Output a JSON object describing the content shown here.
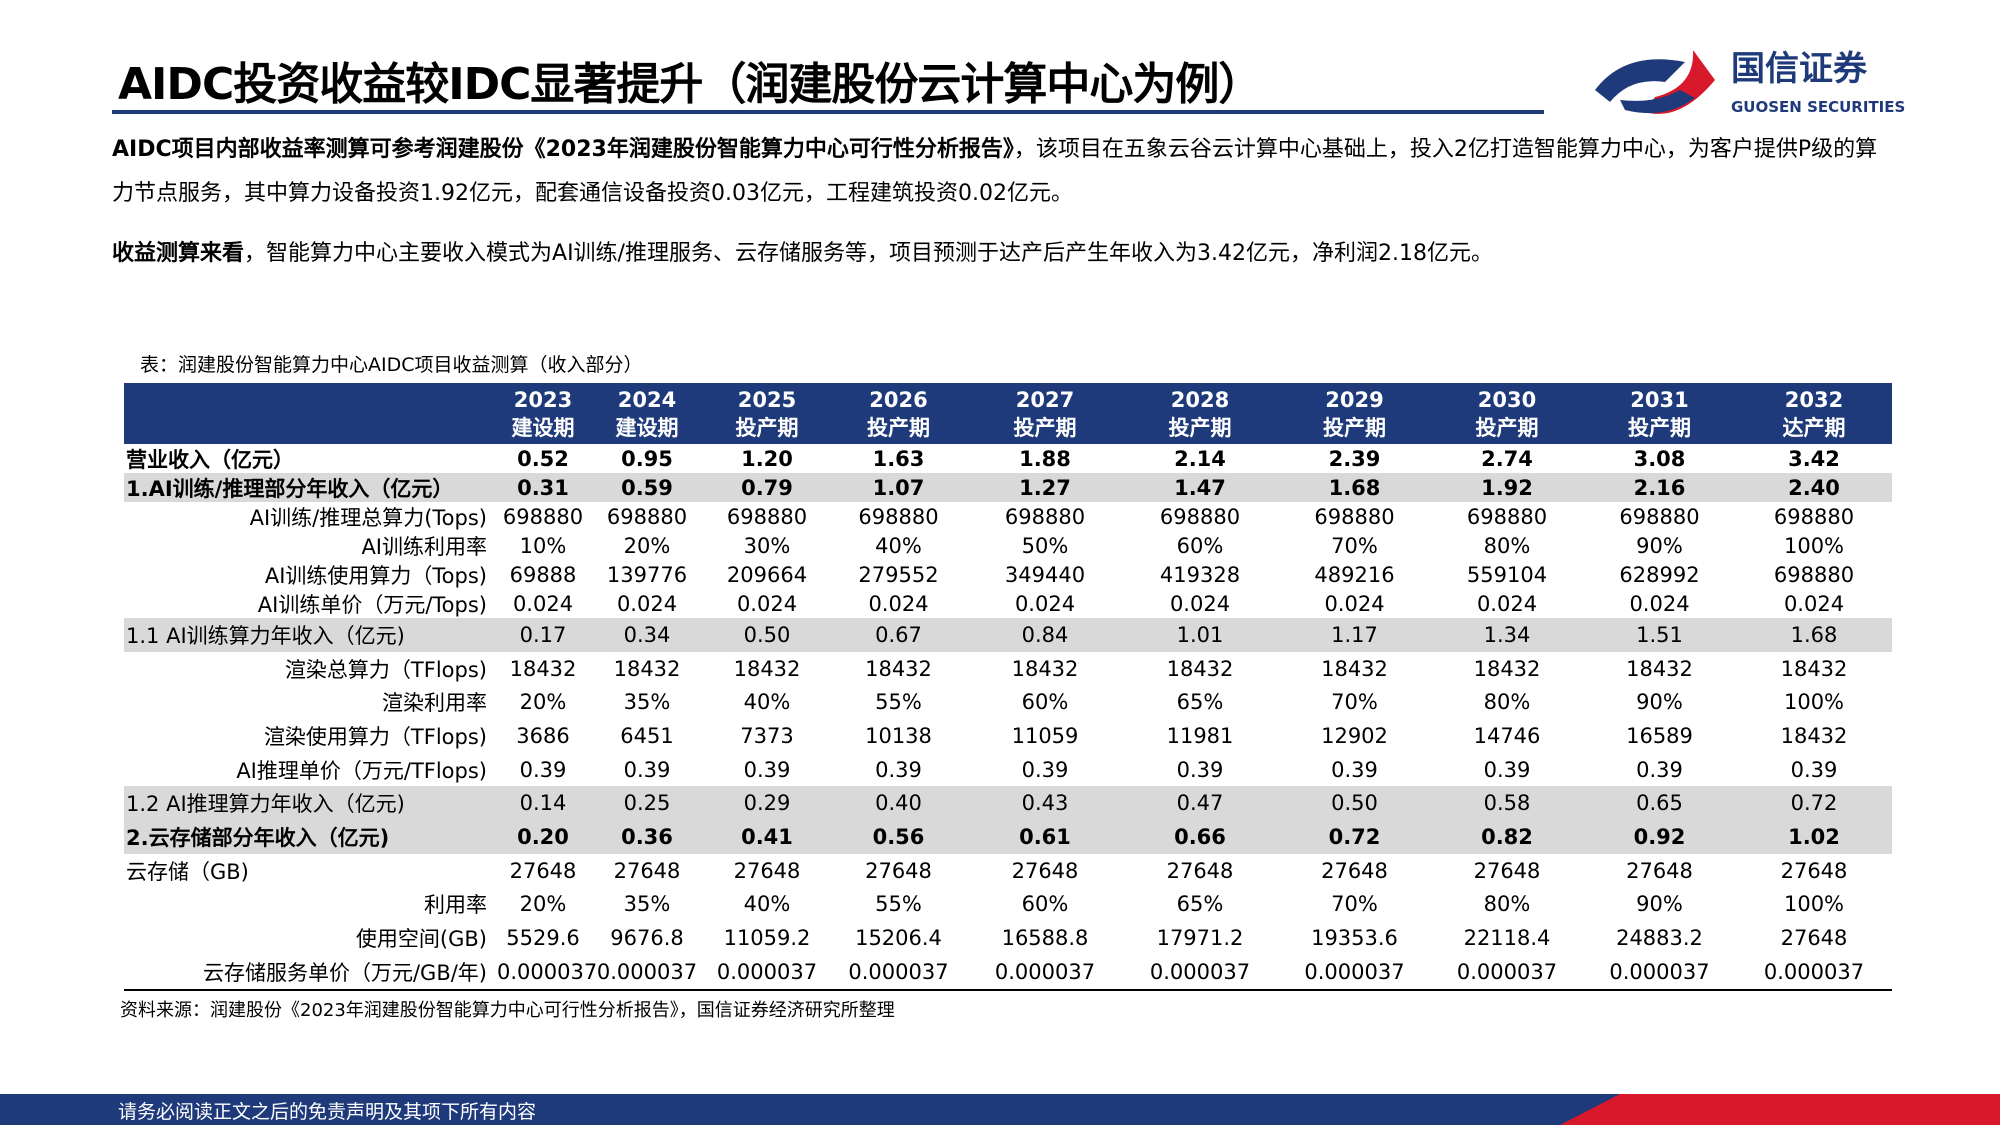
{
  "header": {
    "title": "AIDC投资收益较IDC显著提升（润建股份云计算中心为例）",
    "logo_cn": "国信证券",
    "logo_en": "GUOSEN SECURITIES"
  },
  "paragraphs": [
    {
      "bold": "AIDC项目内部收益率测算可参考润建股份《2023年润建股份智能算力中心可行性分析报告》",
      "text": "，该项目在五象云谷云计算中心基础上，投入2亿打造智能算力中心，为客户提供P级的算力节点服务，其中算力设备投资1.92亿元，配套通信设备投资0.03亿元，工程建筑投资0.02亿元。"
    },
    {
      "bold": "收益测算来看",
      "text": "，智能算力中心主要收入模式为AI训练/推理服务、云存储服务等，项目预测于达产后产生年收入为3.42亿元，净利润2.18亿元。"
    }
  ],
  "table": {
    "caption": "表：润建股份智能算力中心AIDC项目收益测算（收入部分）",
    "years": [
      "2023",
      "2024",
      "2025",
      "2026",
      "2027",
      "2028",
      "2029",
      "2030",
      "2031",
      "2032"
    ],
    "phases": [
      "建设期",
      "建设期",
      "投产期",
      "投产期",
      "投产期",
      "投产期",
      "投产期",
      "投产期",
      "投产期",
      "达产期"
    ],
    "rows": [
      {
        "label": "营业收入（亿元）",
        "values": [
          "0.52",
          "0.95",
          "1.20",
          "1.63",
          "1.88",
          "2.14",
          "2.39",
          "2.74",
          "3.08",
          "3.42"
        ]
      },
      {
        "label": "1.AI训练/推理部分年收入（亿元）",
        "values": [
          "0.31",
          "0.59",
          "0.79",
          "1.07",
          "1.27",
          "1.47",
          "1.68",
          "1.92",
          "2.16",
          "2.40"
        ]
      },
      {
        "label": "AI训练/推理总算力(Tops)",
        "values": [
          "698880",
          "698880",
          "698880",
          "698880",
          "698880",
          "698880",
          "698880",
          "698880",
          "698880",
          "698880"
        ]
      },
      {
        "label": "AI训练利用率",
        "values": [
          "10%",
          "20%",
          "30%",
          "40%",
          "50%",
          "60%",
          "70%",
          "80%",
          "90%",
          "100%"
        ]
      },
      {
        "label": "AI训练使用算力（Tops)",
        "values": [
          "69888",
          "139776",
          "209664",
          "279552",
          "349440",
          "419328",
          "489216",
          "559104",
          "628992",
          "698880"
        ]
      },
      {
        "label": "AI训练单价（万元/Tops)",
        "values": [
          "0.024",
          "0.024",
          "0.024",
          "0.024",
          "0.024",
          "0.024",
          "0.024",
          "0.024",
          "0.024",
          "0.024"
        ]
      },
      {
        "label": "1.1 AI训练算力年收入（亿元)",
        "values": [
          "0.17",
          "0.34",
          "0.50",
          "0.67",
          "0.84",
          "1.01",
          "1.17",
          "1.34",
          "1.51",
          "1.68"
        ]
      },
      {
        "label": "渲染总算力（TFlops)",
        "values": [
          "18432",
          "18432",
          "18432",
          "18432",
          "18432",
          "18432",
          "18432",
          "18432",
          "18432",
          "18432"
        ]
      },
      {
        "label": "渲染利用率",
        "values": [
          "20%",
          "35%",
          "40%",
          "55%",
          "60%",
          "65%",
          "70%",
          "80%",
          "90%",
          "100%"
        ]
      },
      {
        "label": "渲染使用算力（TFlops)",
        "values": [
          "3686",
          "6451",
          "7373",
          "10138",
          "11059",
          "11981",
          "12902",
          "14746",
          "16589",
          "18432"
        ]
      },
      {
        "label": "AI推理单价（万元/TFlops)",
        "values": [
          "0.39",
          "0.39",
          "0.39",
          "0.39",
          "0.39",
          "0.39",
          "0.39",
          "0.39",
          "0.39",
          "0.39"
        ]
      },
      {
        "label": "1.2 AI推理算力年收入（亿元)",
        "values": [
          "0.14",
          "0.25",
          "0.29",
          "0.40",
          "0.43",
          "0.47",
          "0.50",
          "0.58",
          "0.65",
          "0.72"
        ]
      },
      {
        "label": "2.云存储部分年收入（亿元)",
        "values": [
          "0.20",
          "0.36",
          "0.41",
          "0.56",
          "0.61",
          "0.66",
          "0.72",
          "0.82",
          "0.92",
          "1.02"
        ]
      },
      {
        "label": "云存储（GB)",
        "values": [
          "27648",
          "27648",
          "27648",
          "27648",
          "27648",
          "27648",
          "27648",
          "27648",
          "27648",
          "27648"
        ]
      },
      {
        "label": "利用率",
        "values": [
          "20%",
          "35%",
          "40%",
          "55%",
          "60%",
          "65%",
          "70%",
          "80%",
          "90%",
          "100%"
        ]
      },
      {
        "label": "使用空间(GB)",
        "values": [
          "5529.6",
          "9676.8",
          "11059.2",
          "15206.4",
          "16588.8",
          "17971.2",
          "19353.6",
          "22118.4",
          "24883.2",
          "27648"
        ]
      },
      {
        "label": "云存储服务单价（万元/GB/年)",
        "values": [
          "0.000037",
          "0.000037",
          "0.000037",
          "0.000037",
          "0.000037",
          "0.000037",
          "0.000037",
          "0.000037",
          "0.000037",
          "0.000037"
        ]
      }
    ],
    "source": "资料来源：润建股份《2023年润建股份智能算力中心可行性分析报告》，国信证券经济研究所整理"
  },
  "footer": {
    "disclaimer": "请务必阅读正文之后的免责声明及其项下所有内容"
  }
}
